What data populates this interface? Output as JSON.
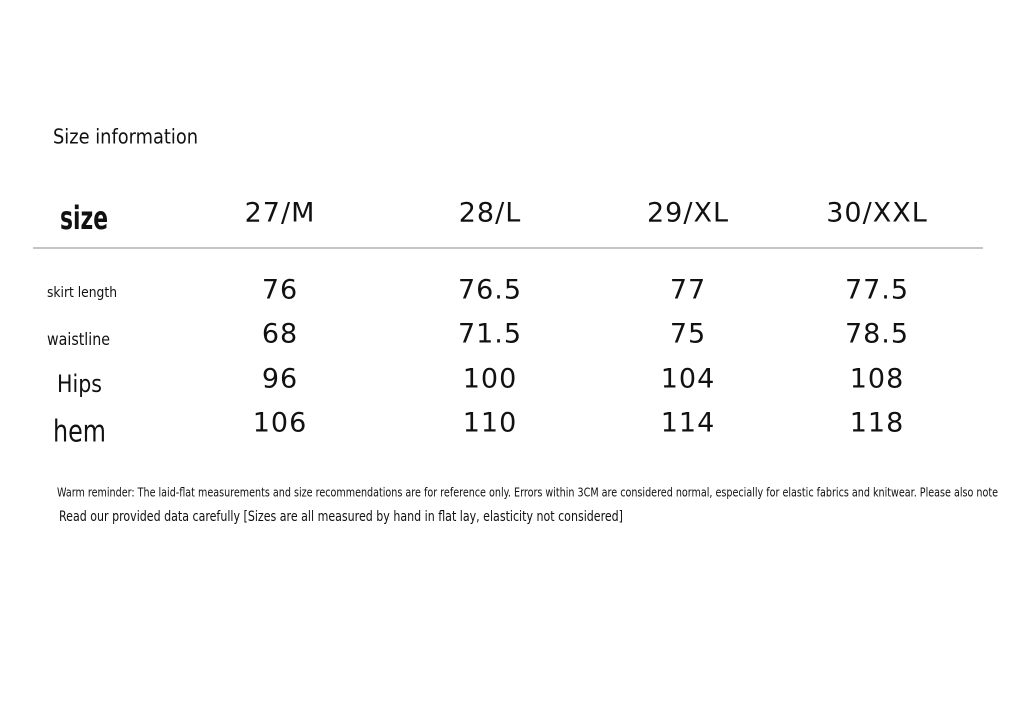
{
  "title": "Size information",
  "table": {
    "header": [
      "size",
      "27/M",
      "28/L",
      "29/XL",
      "30/XXL"
    ],
    "rows": [
      [
        "skirt length",
        76,
        76.5,
        77,
        77.5
      ],
      [
        "waistline",
        68,
        71.5,
        75,
        78.5
      ],
      [
        "Hips",
        96,
        100,
        104,
        108
      ],
      [
        "hem",
        106,
        110,
        114,
        118
      ]
    ]
  },
  "notes": [
    "Warm reminder: The laid-flat measurements and size recommendations are for reference only. Errors within 3CM are considered normal, especially for elastic fabrics and knitwear. Please also note",
    "Read our provided data carefully [Sizes are all measured by hand in flat lay, elasticity not considered]"
  ]
}
